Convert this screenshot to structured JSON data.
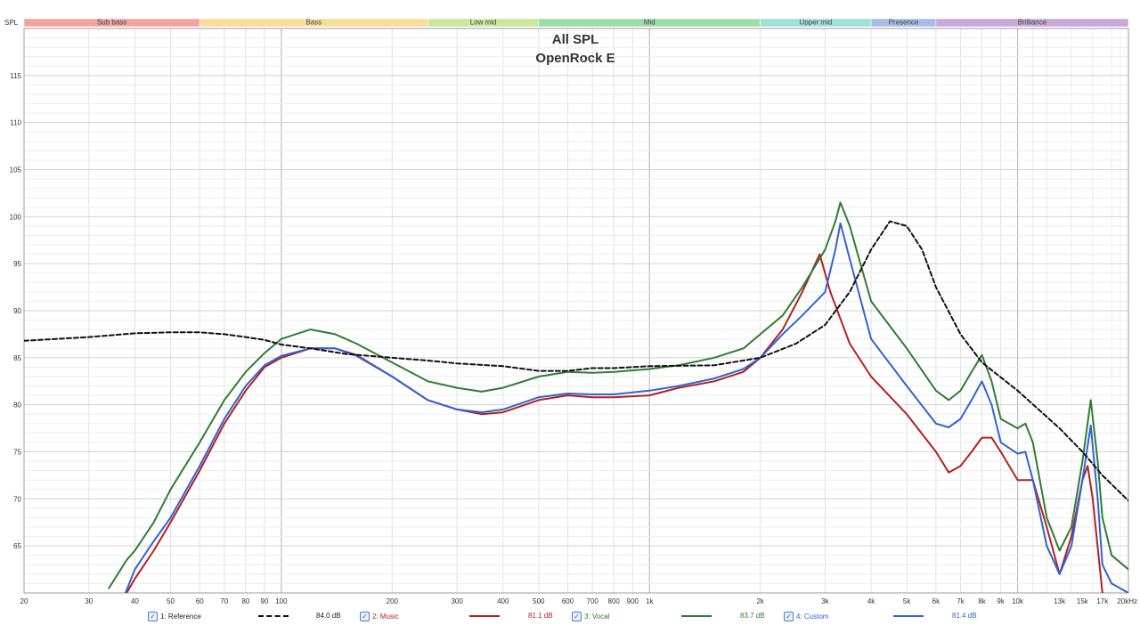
{
  "chart_data": {
    "type": "line",
    "title": "All SPL",
    "subtitle": "OpenRock E",
    "ylabel": "SPL",
    "xlabel": "",
    "x_scale": "log",
    "xlim": [
      20,
      20000
    ],
    "ylim": [
      60,
      120
    ],
    "y_ticks": [
      65,
      70,
      75,
      80,
      85,
      90,
      95,
      100,
      105,
      110,
      115
    ],
    "x_ticks": [
      {
        "v": 20,
        "l": "20"
      },
      {
        "v": 30,
        "l": "30"
      },
      {
        "v": 40,
        "l": "40"
      },
      {
        "v": 50,
        "l": "50"
      },
      {
        "v": 60,
        "l": "60"
      },
      {
        "v": 70,
        "l": "70"
      },
      {
        "v": 80,
        "l": "80"
      },
      {
        "v": 90,
        "l": "90"
      },
      {
        "v": 100,
        "l": "100"
      },
      {
        "v": 200,
        "l": "200"
      },
      {
        "v": 300,
        "l": "300"
      },
      {
        "v": 400,
        "l": "400"
      },
      {
        "v": 500,
        "l": "500"
      },
      {
        "v": 600,
        "l": "600"
      },
      {
        "v": 700,
        "l": "700"
      },
      {
        "v": 800,
        "l": "800"
      },
      {
        "v": 900,
        "l": "900"
      },
      {
        "v": 1000,
        "l": "1k"
      },
      {
        "v": 2000,
        "l": "2k"
      },
      {
        "v": 3000,
        "l": "3k"
      },
      {
        "v": 4000,
        "l": "4k"
      },
      {
        "v": 5000,
        "l": "5k"
      },
      {
        "v": 6000,
        "l": "6k"
      },
      {
        "v": 7000,
        "l": "7k"
      },
      {
        "v": 8000,
        "l": "8k"
      },
      {
        "v": 9000,
        "l": "9k"
      },
      {
        "v": 10000,
        "l": "10k"
      },
      {
        "v": 13000,
        "l": "13k"
      },
      {
        "v": 15000,
        "l": "15k"
      },
      {
        "v": 17000,
        "l": "17k"
      },
      {
        "v": 20000,
        "l": "20kHz"
      }
    ],
    "grid": true,
    "bands": [
      {
        "name": "Sub bass",
        "from": 20,
        "to": 60,
        "color": "#f4a3a3"
      },
      {
        "name": "Bass",
        "from": 60,
        "to": 250,
        "color": "#f7dd9a"
      },
      {
        "name": "Low mid",
        "from": 250,
        "to": 500,
        "color": "#c9e89a"
      },
      {
        "name": "Mid",
        "from": 500,
        "to": 2000,
        "color": "#9fdcab"
      },
      {
        "name": "Upper mid",
        "from": 2000,
        "to": 4000,
        "color": "#9fe0d9"
      },
      {
        "name": "Presence",
        "from": 4000,
        "to": 6000,
        "color": "#a7bde6"
      },
      {
        "name": "Brilliance",
        "from": 6000,
        "to": 20000,
        "color": "#c7a9d8"
      }
    ],
    "series": [
      {
        "name": "1: Reference",
        "level": "84.0 dB",
        "color": "#111111",
        "dashed": true,
        "points": [
          [
            20,
            86.8
          ],
          [
            30,
            87.2
          ],
          [
            40,
            87.6
          ],
          [
            50,
            87.7
          ],
          [
            60,
            87.7
          ],
          [
            70,
            87.5
          ],
          [
            80,
            87.2
          ],
          [
            90,
            86.9
          ],
          [
            100,
            86.4
          ],
          [
            120,
            86.0
          ],
          [
            150,
            85.4
          ],
          [
            200,
            85.0
          ],
          [
            250,
            84.7
          ],
          [
            300,
            84.4
          ],
          [
            400,
            84.1
          ],
          [
            500,
            83.6
          ],
          [
            600,
            83.6
          ],
          [
            700,
            83.9
          ],
          [
            800,
            83.9
          ],
          [
            1000,
            84.1
          ],
          [
            1500,
            84.2
          ],
          [
            2000,
            85.0
          ],
          [
            2500,
            86.5
          ],
          [
            3000,
            88.5
          ],
          [
            3500,
            92.0
          ],
          [
            4000,
            96.5
          ],
          [
            4500,
            99.5
          ],
          [
            5000,
            99.0
          ],
          [
            5500,
            96.5
          ],
          [
            6000,
            92.5
          ],
          [
            7000,
            87.5
          ],
          [
            8000,
            84.5
          ],
          [
            10000,
            81.5
          ],
          [
            13000,
            77.5
          ],
          [
            15000,
            75.0
          ],
          [
            17000,
            72.5
          ],
          [
            20000,
            69.8
          ]
        ]
      },
      {
        "name": "2: Music",
        "level": "81.1 dB",
        "color": "#b52020",
        "dashed": false,
        "points": [
          [
            34,
            58.0
          ],
          [
            38,
            60.0
          ],
          [
            40,
            61.5
          ],
          [
            45,
            64.5
          ],
          [
            50,
            67.5
          ],
          [
            60,
            73.0
          ],
          [
            70,
            78.0
          ],
          [
            80,
            81.5
          ],
          [
            90,
            84.0
          ],
          [
            100,
            85.0
          ],
          [
            120,
            86.0
          ],
          [
            140,
            86.0
          ],
          [
            160,
            85.3
          ],
          [
            200,
            83.0
          ],
          [
            250,
            80.5
          ],
          [
            300,
            79.5
          ],
          [
            350,
            79.0
          ],
          [
            400,
            79.2
          ],
          [
            500,
            80.5
          ],
          [
            600,
            81.0
          ],
          [
            700,
            80.8
          ],
          [
            800,
            80.8
          ],
          [
            1000,
            81.0
          ],
          [
            1200,
            81.8
          ],
          [
            1500,
            82.5
          ],
          [
            1800,
            83.5
          ],
          [
            2000,
            85.0
          ],
          [
            2300,
            88.0
          ],
          [
            2600,
            92.0
          ],
          [
            2900,
            96.0
          ],
          [
            3100,
            92.0
          ],
          [
            3500,
            86.5
          ],
          [
            4000,
            83.0
          ],
          [
            5000,
            79.0
          ],
          [
            6000,
            75.0
          ],
          [
            6500,
            72.8
          ],
          [
            7000,
            73.5
          ],
          [
            7500,
            75.0
          ],
          [
            8000,
            76.5
          ],
          [
            8500,
            76.5
          ],
          [
            9000,
            75.0
          ],
          [
            10000,
            72.0
          ],
          [
            11000,
            72.0
          ],
          [
            12000,
            67.0
          ],
          [
            13000,
            62.0
          ],
          [
            14000,
            66.0
          ],
          [
            15000,
            72.0
          ],
          [
            15500,
            73.5
          ],
          [
            16000,
            70.0
          ],
          [
            17000,
            60.0
          ],
          [
            20000,
            58.0
          ]
        ]
      },
      {
        "name": "3: Vocal",
        "level": "83.7 dB",
        "color": "#2e7d32",
        "dashed": false,
        "points": [
          [
            34,
            60.5
          ],
          [
            38,
            63.5
          ],
          [
            40,
            64.5
          ],
          [
            45,
            67.5
          ],
          [
            50,
            71.0
          ],
          [
            60,
            76.0
          ],
          [
            70,
            80.5
          ],
          [
            80,
            83.5
          ],
          [
            90,
            85.5
          ],
          [
            100,
            87.0
          ],
          [
            120,
            88.0
          ],
          [
            140,
            87.5
          ],
          [
            160,
            86.5
          ],
          [
            200,
            84.5
          ],
          [
            250,
            82.5
          ],
          [
            300,
            81.8
          ],
          [
            350,
            81.4
          ],
          [
            400,
            81.8
          ],
          [
            500,
            83.0
          ],
          [
            600,
            83.5
          ],
          [
            700,
            83.4
          ],
          [
            800,
            83.5
          ],
          [
            1000,
            83.8
          ],
          [
            1200,
            84.2
          ],
          [
            1500,
            85.0
          ],
          [
            1800,
            86.0
          ],
          [
            2000,
            87.5
          ],
          [
            2300,
            89.5
          ],
          [
            2600,
            92.5
          ],
          [
            3000,
            96.5
          ],
          [
            3200,
            99.5
          ],
          [
            3300,
            101.5
          ],
          [
            3500,
            99.0
          ],
          [
            4000,
            91.0
          ],
          [
            5000,
            86.0
          ],
          [
            6000,
            81.5
          ],
          [
            6500,
            80.5
          ],
          [
            7000,
            81.5
          ],
          [
            7500,
            83.5
          ],
          [
            8000,
            85.3
          ],
          [
            8500,
            82.5
          ],
          [
            9000,
            78.5
          ],
          [
            10000,
            77.5
          ],
          [
            10500,
            78.0
          ],
          [
            11000,
            76.0
          ],
          [
            12000,
            68.0
          ],
          [
            13000,
            64.5
          ],
          [
            14000,
            67.0
          ],
          [
            15000,
            74.0
          ],
          [
            15800,
            80.5
          ],
          [
            16500,
            74.0
          ],
          [
            17000,
            68.0
          ],
          [
            18000,
            64.0
          ],
          [
            20000,
            62.5
          ]
        ]
      },
      {
        "name": "4: Custom",
        "level": "81.4 dB",
        "color": "#2f63d6",
        "dashed": false,
        "points": [
          [
            36,
            58.0
          ],
          [
            40,
            62.5
          ],
          [
            45,
            65.5
          ],
          [
            50,
            68.0
          ],
          [
            60,
            73.5
          ],
          [
            70,
            78.5
          ],
          [
            80,
            82.0
          ],
          [
            90,
            84.2
          ],
          [
            100,
            85.2
          ],
          [
            120,
            86.0
          ],
          [
            140,
            86.0
          ],
          [
            160,
            85.2
          ],
          [
            200,
            83.0
          ],
          [
            250,
            80.5
          ],
          [
            300,
            79.5
          ],
          [
            350,
            79.2
          ],
          [
            400,
            79.5
          ],
          [
            500,
            80.8
          ],
          [
            600,
            81.2
          ],
          [
            700,
            81.1
          ],
          [
            800,
            81.1
          ],
          [
            1000,
            81.5
          ],
          [
            1200,
            82.0
          ],
          [
            1500,
            82.8
          ],
          [
            1800,
            83.8
          ],
          [
            2000,
            85.0
          ],
          [
            2300,
            87.5
          ],
          [
            2600,
            89.5
          ],
          [
            3000,
            92.0
          ],
          [
            3200,
            96.5
          ],
          [
            3300,
            99.3
          ],
          [
            3500,
            95.5
          ],
          [
            4000,
            87.0
          ],
          [
            5000,
            82.0
          ],
          [
            6000,
            78.0
          ],
          [
            6500,
            77.6
          ],
          [
            7000,
            78.5
          ],
          [
            7500,
            80.5
          ],
          [
            8000,
            82.5
          ],
          [
            8500,
            80.0
          ],
          [
            9000,
            76.0
          ],
          [
            10000,
            74.8
          ],
          [
            10500,
            75.0
          ],
          [
            11000,
            72.0
          ],
          [
            12000,
            65.0
          ],
          [
            13000,
            62.0
          ],
          [
            14000,
            65.0
          ],
          [
            15000,
            72.0
          ],
          [
            15800,
            77.8
          ],
          [
            16500,
            70.0
          ],
          [
            17000,
            63.0
          ],
          [
            18000,
            61.0
          ],
          [
            20000,
            60.0
          ]
        ]
      }
    ]
  },
  "legend": [
    {
      "label": "1: Reference",
      "db": "84.0 dB"
    },
    {
      "label": "2: Music",
      "db": "81.1 dB"
    },
    {
      "label": "3: Vocal",
      "db": "83.7 dB"
    },
    {
      "label": "4: Custom",
      "db": "81.4 dB"
    }
  ],
  "checkbox_mark": "✓"
}
